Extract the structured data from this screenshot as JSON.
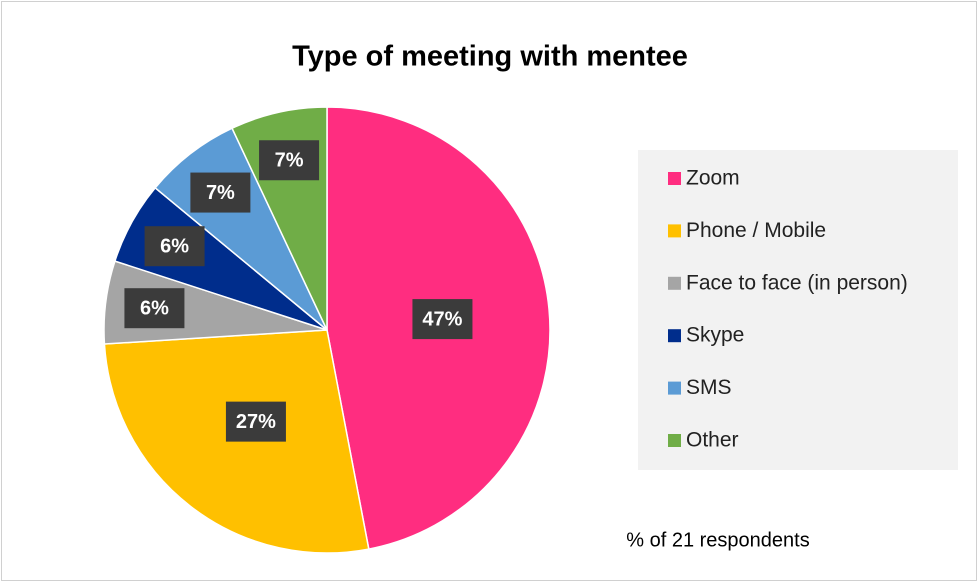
{
  "chart_data": {
    "type": "pie",
    "title": "Type of meeting with mentee",
    "categories": [
      "Zoom",
      "Phone / Mobile",
      "Face to face (in person)",
      "Skype",
      "SMS",
      "Other"
    ],
    "values": [
      47,
      27,
      6,
      6,
      7,
      7
    ],
    "value_labels": [
      "47%",
      "27%",
      "6%",
      "6%",
      "7%",
      "7%"
    ],
    "colors": [
      "#ff2d80",
      "#ffc000",
      "#a5a5a5",
      "#002d8c",
      "#5b9bd5",
      "#70ad47"
    ],
    "legend": "right",
    "annotation": "% of 21 respondents"
  }
}
